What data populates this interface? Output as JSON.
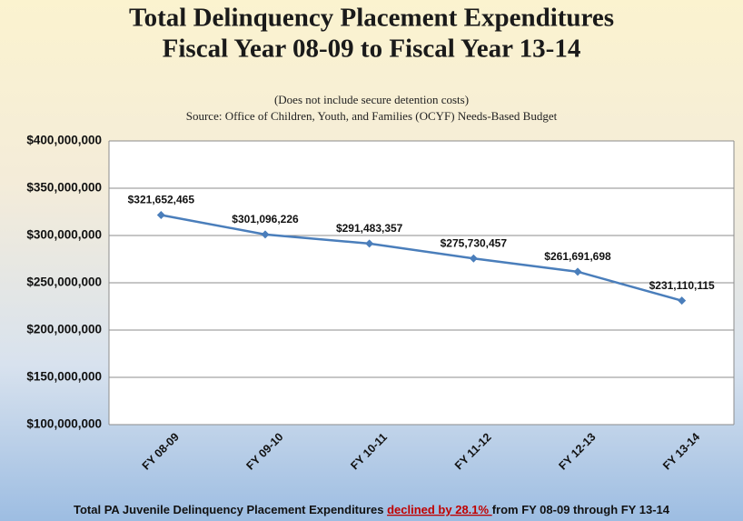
{
  "chart_data": {
    "type": "line",
    "title": [
      "Total Delinquency Placement Expenditures",
      "Fiscal Year 08-09 to Fiscal Year 13-14"
    ],
    "subtitle": [
      "(Does not include secure detention costs)",
      "Source: Office of Children, Youth, and Families (OCYF) Needs-Based Budget"
    ],
    "categories": [
      "FY 08-09",
      "FY 09-10",
      "FY 10-11",
      "FY 11-12",
      "FY 12-13",
      "FY 13-14"
    ],
    "series": [
      {
        "color": "#4a7ebb",
        "values": [
          321652465,
          301096226,
          291483357,
          275730457,
          261691698,
          231110115
        ],
        "value_labels": [
          "$321,652,465",
          "$301,096,226",
          "$291,483,357",
          "$275,730,457",
          "$261,691,698",
          "$231,110,115"
        ]
      }
    ],
    "ylim": [
      100000000,
      400000000
    ],
    "yticks": [
      {
        "value": 100000000,
        "label": "$100,000,000"
      },
      {
        "value": 150000000,
        "label": "$150,000,000"
      },
      {
        "value": 200000000,
        "label": "$200,000,000"
      },
      {
        "value": 250000000,
        "label": "$250,000,000"
      },
      {
        "value": 300000000,
        "label": "$300,000,000"
      },
      {
        "value": 350000000,
        "label": "$350,000,000"
      },
      {
        "value": 400000000,
        "label": "$400,000,000"
      }
    ],
    "grid": true,
    "footnote": [
      "Total PA Juvenile Delinquency  Placement Expenditures ",
      "declined by 28.1% ",
      "from FY 08-09 through FY 13-14"
    ]
  }
}
